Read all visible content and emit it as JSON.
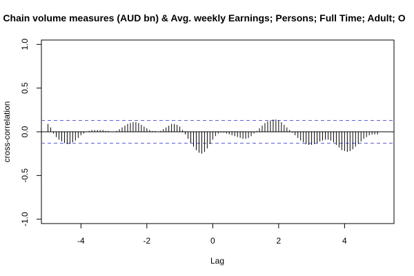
{
  "chart_data": {
    "type": "bar",
    "title": "Chain volume measures (AUD bn) & Avg. weekly Earnings; Persons; Full Time; Adult; O",
    "xlabel": "Lag",
    "ylabel": "cross-correlation",
    "xlim": [
      -5.2,
      5.5
    ],
    "ylim": [
      -1.05,
      1.05
    ],
    "xticks": [
      -4,
      -2,
      0,
      2,
      4
    ],
    "xtick_labels": [
      "-4",
      "-2",
      "0",
      "2",
      "4"
    ],
    "yticks": [
      -1.0,
      -0.5,
      0.0,
      0.5,
      1.0
    ],
    "ytick_labels": [
      "-1.0",
      "-0.5",
      "0.0",
      "0.5",
      "1.0"
    ],
    "grid": false,
    "confidence_band": 0.13,
    "colors": {
      "bars": "#000000",
      "band": "#5b5bd6",
      "zero_line": "#000000",
      "frame": "#000000"
    },
    "lags": [
      -5,
      -4.9167,
      -4.8333,
      -4.75,
      -4.6667,
      -4.5833,
      -4.5,
      -4.4167,
      -4.3333,
      -4.25,
      -4.1667,
      -4.0833,
      -4,
      -3.9167,
      -3.8333,
      -3.75,
      -3.6667,
      -3.5833,
      -3.5,
      -3.4167,
      -3.3333,
      -3.25,
      -3.1667,
      -3.0833,
      -3,
      -2.9167,
      -2.8333,
      -2.75,
      -2.6667,
      -2.5833,
      -2.5,
      -2.4167,
      -2.3333,
      -2.25,
      -2.1667,
      -2.0833,
      -2,
      -1.9167,
      -1.8333,
      -1.75,
      -1.6667,
      -1.5833,
      -1.5,
      -1.4167,
      -1.3333,
      -1.25,
      -1.1667,
      -1.0833,
      -1,
      -0.9167,
      -0.8333,
      -0.75,
      -0.6667,
      -0.5833,
      -0.5,
      -0.4167,
      -0.3333,
      -0.25,
      -0.1667,
      -0.0833,
      0,
      0.0833,
      0.1667,
      0.25,
      0.3333,
      0.4167,
      0.5,
      0.5833,
      0.6667,
      0.75,
      0.8333,
      0.9167,
      1,
      1.0833,
      1.1667,
      1.25,
      1.3333,
      1.4167,
      1.5,
      1.5833,
      1.6667,
      1.75,
      1.8333,
      1.9167,
      2,
      2.0833,
      2.1667,
      2.25,
      2.3333,
      2.4167,
      2.5,
      2.5833,
      2.6667,
      2.75,
      2.8333,
      2.9167,
      3,
      3.0833,
      3.1667,
      3.25,
      3.3333,
      3.4167,
      3.5,
      3.5833,
      3.6667,
      3.75,
      3.8333,
      3.9167,
      4,
      4.0833,
      4.1667,
      4.25,
      4.3333,
      4.4167,
      4.5,
      4.5833,
      4.6667,
      4.75,
      4.8333,
      4.9167,
      5
    ],
    "values": [
      0.09,
      0.05,
      -0.02,
      -0.06,
      -0.09,
      -0.11,
      -0.13,
      -0.14,
      -0.14,
      -0.12,
      -0.1,
      -0.07,
      -0.04,
      -0.02,
      0,
      0.01,
      0.02,
      0.02,
      0.02,
      0.02,
      0.02,
      0.01,
      0.01,
      0,
      0,
      0.01,
      0.03,
      0.05,
      0.07,
      0.09,
      0.1,
      0.11,
      0.11,
      0.1,
      0.08,
      0.06,
      0.04,
      0.02,
      0.01,
      0.01,
      0,
      0.01,
      0.03,
      0.05,
      0.07,
      0.09,
      0.09,
      0.08,
      0.06,
      0.02,
      -0.03,
      -0.08,
      -0.13,
      -0.17,
      -0.21,
      -0.24,
      -0.25,
      -0.23,
      -0.19,
      -0.14,
      -0.09,
      -0.05,
      -0.02,
      -0.01,
      -0.01,
      -0.02,
      -0.03,
      -0.04,
      -0.05,
      -0.06,
      -0.07,
      -0.08,
      -0.08,
      -0.07,
      -0.05,
      -0.02,
      0.01,
      0.04,
      0.07,
      0.1,
      0.12,
      0.13,
      0.14,
      0.14,
      0.13,
      0.11,
      0.08,
      0.05,
      0.02,
      -0.01,
      -0.04,
      -0.07,
      -0.1,
      -0.12,
      -0.14,
      -0.15,
      -0.15,
      -0.14,
      -0.13,
      -0.11,
      -0.1,
      -0.09,
      -0.09,
      -0.1,
      -0.12,
      -0.15,
      -0.18,
      -0.21,
      -0.22,
      -0.23,
      -0.22,
      -0.2,
      -0.17,
      -0.14,
      -0.11,
      -0.08,
      -0.06,
      -0.04,
      -0.03,
      -0.03,
      -0.03
    ]
  }
}
